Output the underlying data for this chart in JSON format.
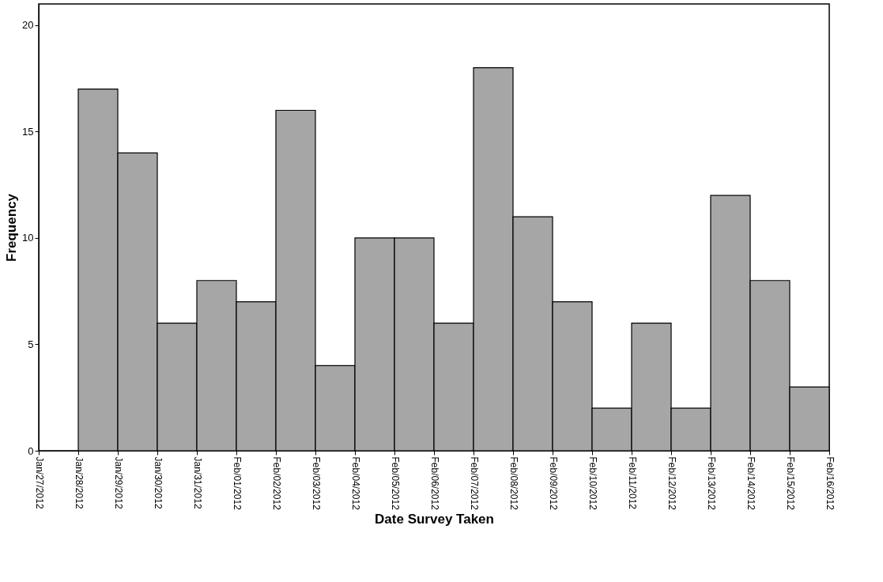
{
  "chart_data": {
    "type": "histogram",
    "xlabel": "Date Survey Taken",
    "ylabel": "Frequency",
    "bins": [
      "2012-01-28",
      "2012-01-29",
      "2012-01-30",
      "2012-01-31",
      "2012-02-01",
      "2012-02-02",
      "2012-02-03",
      "2012-02-04",
      "2012-02-05",
      "2012-02-06",
      "2012-02-07",
      "2012-02-08",
      "2012-02-09",
      "2012-02-10",
      "2012-02-11",
      "2012-02-12",
      "2012-02-13",
      "2012-02-14",
      "2012-02-15",
      "2012-02-16"
    ],
    "values": [
      17,
      14,
      6,
      8,
      7,
      16,
      4,
      10,
      10,
      6,
      18,
      11,
      7,
      2,
      6,
      2,
      12,
      8,
      3
    ],
    "color": "#a6a6a6",
    "xlim": [
      "2012-01-27",
      "2012-02-16"
    ],
    "xticks": [
      {
        "value": "2012-01-27",
        "label": "Jan/27/2012"
      },
      {
        "value": "2012-01-28",
        "label": "Jan/28/2012"
      },
      {
        "value": "2012-01-29",
        "label": "Jan/29/2012"
      },
      {
        "value": "2012-01-30",
        "label": "Jan/30/2012"
      },
      {
        "value": "2012-01-31",
        "label": "Jan/31/2012"
      },
      {
        "value": "2012-02-01",
        "label": "Feb/01/2012"
      },
      {
        "value": "2012-02-02",
        "label": "Feb/02/2012"
      },
      {
        "value": "2012-02-03",
        "label": "Feb/03/2012"
      },
      {
        "value": "2012-02-04",
        "label": "Feb/04/2012"
      },
      {
        "value": "2012-02-05",
        "label": "Feb/05/2012"
      },
      {
        "value": "2012-02-06",
        "label": "Feb/06/2012"
      },
      {
        "value": "2012-02-07",
        "label": "Feb/07/2012"
      },
      {
        "value": "2012-02-08",
        "label": "Feb/08/2012"
      },
      {
        "value": "2012-02-09",
        "label": "Feb/09/2012"
      },
      {
        "value": "2012-02-10",
        "label": "Feb/10/2012"
      },
      {
        "value": "2012-02-11",
        "label": "Feb/11/2012"
      },
      {
        "value": "2012-02-12",
        "label": "Feb/12/2012"
      },
      {
        "value": "2012-02-13",
        "label": "Feb/13/2012"
      },
      {
        "value": "2012-02-14",
        "label": "Feb/14/2012"
      },
      {
        "value": "2012-02-15",
        "label": "Feb/15/2012"
      },
      {
        "value": "2012-02-16",
        "label": "Feb/16/2012"
      }
    ],
    "ylim": [
      0,
      21
    ],
    "yticks": [
      0,
      5,
      10,
      15,
      20
    ],
    "grid": false
  }
}
